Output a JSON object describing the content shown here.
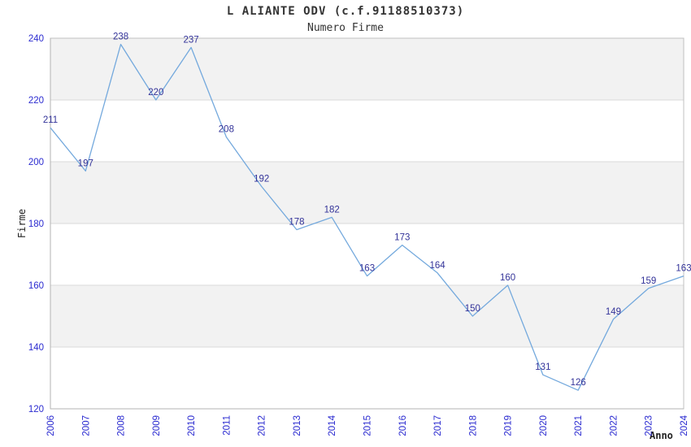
{
  "chart_data": {
    "type": "line",
    "title": "L ALIANTE ODV (c.f.91188510373)",
    "subtitle": "Numero Firme",
    "xlabel": "Anno",
    "ylabel": "Firme",
    "series_name": "Numero Firme",
    "x": [
      2006,
      2007,
      2008,
      2009,
      2010,
      2011,
      2012,
      2013,
      2014,
      2015,
      2016,
      2017,
      2018,
      2019,
      2020,
      2021,
      2022,
      2023,
      2024
    ],
    "values": [
      211,
      197,
      238,
      220,
      237,
      208,
      192,
      178,
      182,
      163,
      173,
      164,
      150,
      160,
      131,
      126,
      149,
      159,
      163
    ],
    "ylim": [
      120,
      240
    ],
    "ytick_step": 20,
    "yticks": [
      120,
      140,
      160,
      180,
      200,
      220,
      240
    ],
    "point_labels_shown": true,
    "legend_position": "none",
    "grid": "horizontal gridlines with alternating gray bands",
    "colors": {
      "line": "#74a9dd",
      "point_label": "#333399",
      "tick_label": "#2b2bd0",
      "band": "#f2f2f2",
      "grid": "#d9d9d9",
      "axis": "#c0c0c0",
      "title": "#333333"
    }
  }
}
